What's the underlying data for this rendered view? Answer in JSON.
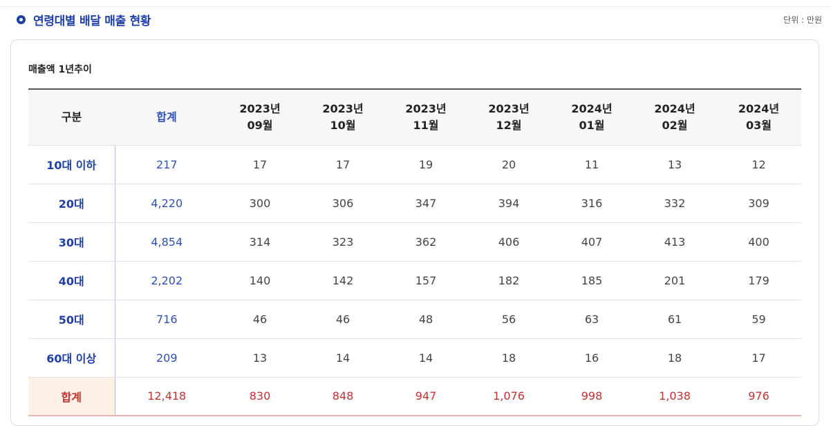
{
  "header": {
    "title": "연령대별 배달 매출 현황",
    "unit": "단위 : 만원"
  },
  "card": {
    "subtitle": "매출액 1년추이"
  },
  "table": {
    "columns": [
      {
        "line1": "구분",
        "line2": ""
      },
      {
        "line1": "합계",
        "line2": ""
      },
      {
        "line1": "2023년",
        "line2": "09월"
      },
      {
        "line1": "2023년",
        "line2": "10월"
      },
      {
        "line1": "2023년",
        "line2": "11월"
      },
      {
        "line1": "2023년",
        "line2": "12월"
      },
      {
        "line1": "2024년",
        "line2": "01월"
      },
      {
        "line1": "2024년",
        "line2": "02월"
      },
      {
        "line1": "2024년",
        "line2": "03월"
      }
    ],
    "rows": [
      {
        "label": "10대 이하",
        "total": "217",
        "values": [
          "17",
          "17",
          "19",
          "20",
          "11",
          "13",
          "12"
        ]
      },
      {
        "label": "20대",
        "total": "4,220",
        "values": [
          "300",
          "306",
          "347",
          "394",
          "316",
          "332",
          "309"
        ]
      },
      {
        "label": "30대",
        "total": "4,854",
        "values": [
          "314",
          "323",
          "362",
          "406",
          "407",
          "413",
          "400"
        ]
      },
      {
        "label": "40대",
        "total": "2,202",
        "values": [
          "140",
          "142",
          "157",
          "182",
          "185",
          "201",
          "179"
        ]
      },
      {
        "label": "50대",
        "total": "716",
        "values": [
          "46",
          "46",
          "48",
          "56",
          "63",
          "61",
          "59"
        ]
      },
      {
        "label": "60대 이상",
        "total": "209",
        "values": [
          "13",
          "14",
          "14",
          "18",
          "16",
          "18",
          "17"
        ]
      },
      {
        "label": "합계",
        "total": "12,418",
        "values": [
          "830",
          "848",
          "947",
          "1,076",
          "998",
          "1,038",
          "976"
        ]
      }
    ]
  },
  "colors": {
    "accent_blue": "#1f3fa8",
    "total_red": "#c43131",
    "total_row_bg": "#fdf1e6"
  }
}
